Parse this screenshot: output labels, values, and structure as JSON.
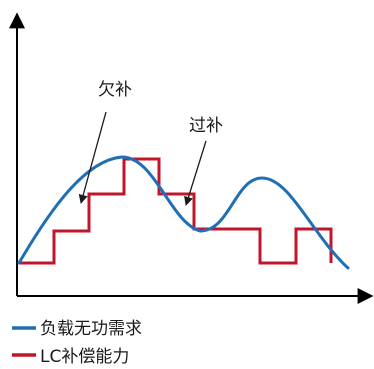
{
  "annotations": {
    "under": "欠补",
    "over": "过补"
  },
  "legend": [
    {
      "label": "负载无功需求",
      "color": "#1f6fb5"
    },
    {
      "label": "LC补偿能力",
      "color": "#c0152b"
    }
  ],
  "colors": {
    "axis": "#000000",
    "demand_curve": "#1f6fb5",
    "compensation_steps": "#c0152b"
  }
}
